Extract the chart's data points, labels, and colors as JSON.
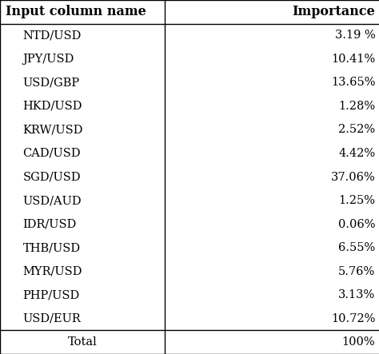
{
  "col1_header": "Input column name",
  "col2_header": "Importance",
  "rows": [
    [
      "NTD/USD",
      "3.19 %"
    ],
    [
      "JPY/USD",
      "10.41%"
    ],
    [
      "USD/GBP",
      "13.65%"
    ],
    [
      "HKD/USD",
      "1.28%"
    ],
    [
      "KRW/USD",
      "2.52%"
    ],
    [
      "CAD/USD",
      "4.42%"
    ],
    [
      "SGD/USD",
      "37.06%"
    ],
    [
      "USD/AUD",
      "1.25%"
    ],
    [
      "IDR/USD",
      "0.06%"
    ],
    [
      "THB/USD",
      "6.55%"
    ],
    [
      "MYR/USD",
      "5.76%"
    ],
    [
      "PHP/USD",
      "3.13%"
    ],
    [
      "USD/EUR",
      "10.72%"
    ]
  ],
  "footer_col1": "Total",
  "footer_col2": "100%",
  "bg_color": "#ffffff",
  "header_fontsize": 11.5,
  "cell_fontsize": 10.5,
  "footer_fontsize": 10.5,
  "line_color": "#000000",
  "text_color": "#000000",
  "col_split": 0.435
}
